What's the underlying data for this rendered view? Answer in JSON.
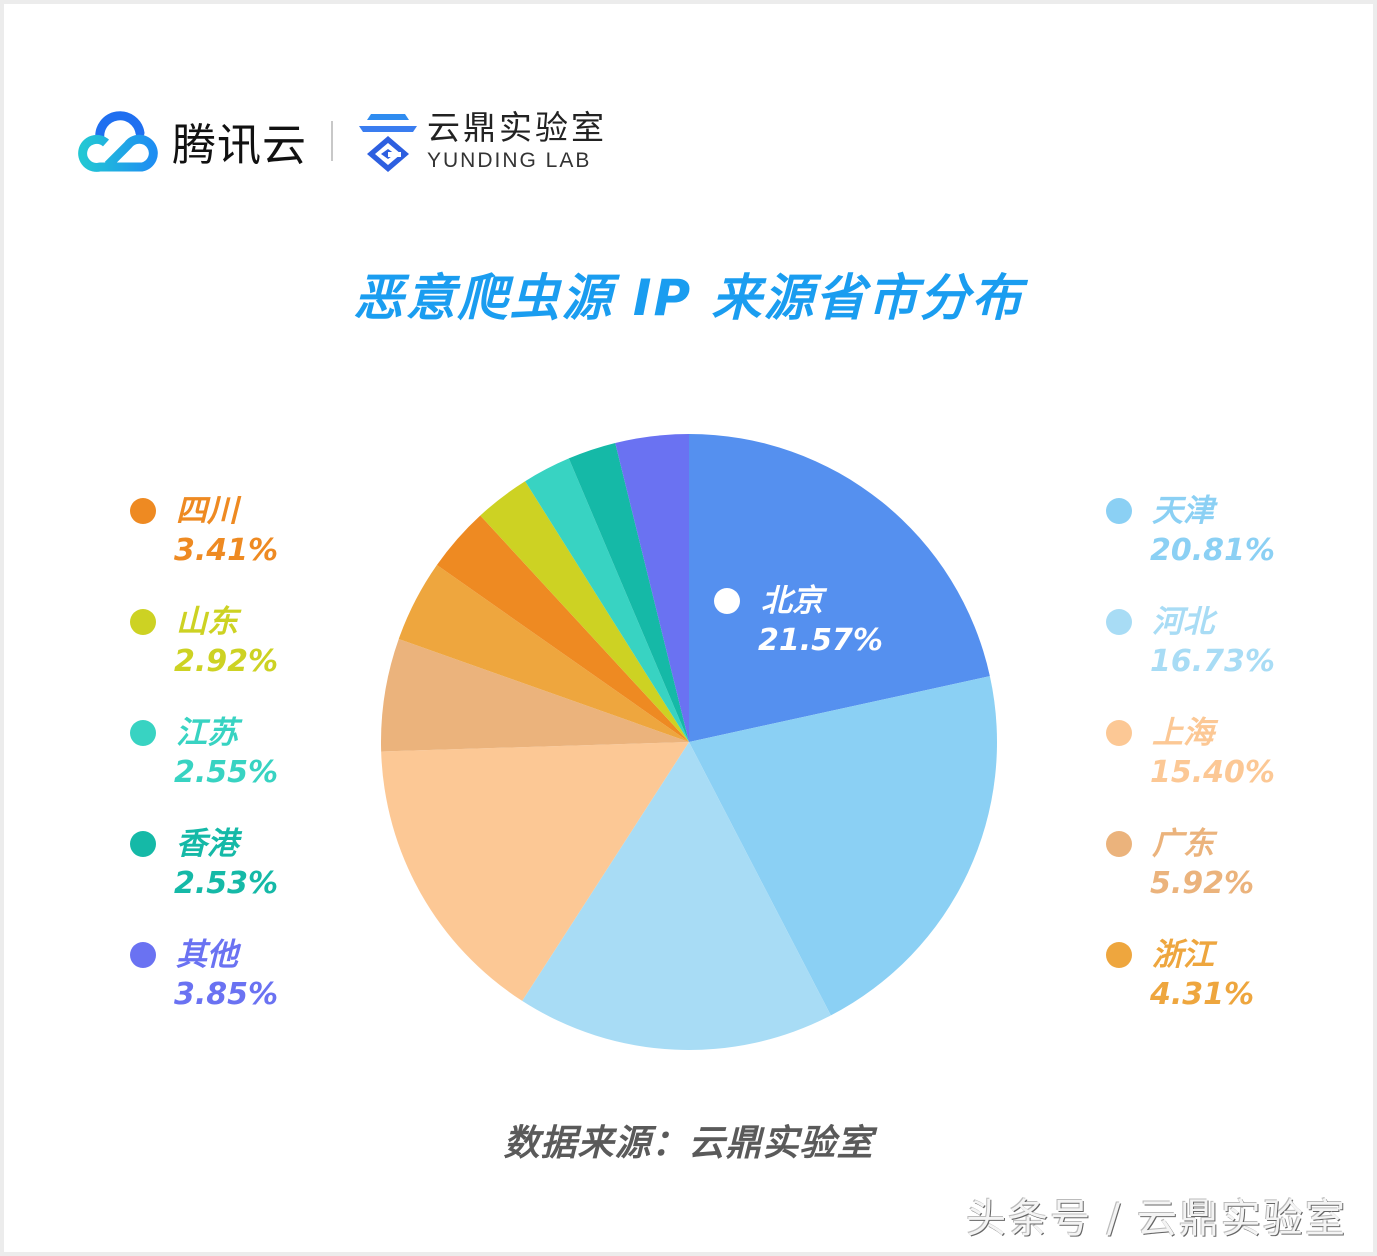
{
  "header": {
    "brand_tencent": "腾讯云",
    "brand_lab_cn": "云鼎实验室",
    "brand_lab_en": "YUNDING LAB"
  },
  "title": "恶意爬虫源 IP 来源省市分布",
  "source": "数据来源：云鼎实验室",
  "watermark": "头条号 / 云鼎实验室",
  "legend_left": [
    {
      "name": "四川",
      "value": "3.41%",
      "color": "#ee8a22"
    },
    {
      "name": "山东",
      "value": "2.92%",
      "color": "#cdd223"
    },
    {
      "name": "江苏",
      "value": "2.55%",
      "color": "#38d3c2"
    },
    {
      "name": "香港",
      "value": "2.53%",
      "color": "#15b9a7"
    },
    {
      "name": "其他",
      "value": "3.85%",
      "color": "#6a72f2"
    }
  ],
  "legend_right": [
    {
      "name": "天津",
      "value": "20.81%",
      "color": "#8bd0f4"
    },
    {
      "name": "河北",
      "value": "16.73%",
      "color": "#a8dcf5"
    },
    {
      "name": "上海",
      "value": "15.40%",
      "color": "#fcc895"
    },
    {
      "name": "广东",
      "value": "5.92%",
      "color": "#ebb37c"
    },
    {
      "name": "浙江",
      "value": "4.31%",
      "color": "#eea63e"
    }
  ],
  "inner_label": {
    "name": "北京",
    "value": "21.57%",
    "color": "#5590ef"
  },
  "chart_data": {
    "type": "pie",
    "title": "恶意爬虫源 IP 来源省市分布",
    "start_angle": "12 o'clock",
    "direction": "clockwise",
    "unit": "%",
    "categories": [
      "北京",
      "天津",
      "河北",
      "上海",
      "广东",
      "浙江",
      "四川",
      "山东",
      "江苏",
      "香港",
      "其他"
    ],
    "values": [
      21.57,
      20.81,
      16.73,
      15.4,
      5.92,
      4.31,
      3.41,
      2.92,
      2.55,
      2.53,
      3.85
    ],
    "colors": [
      "#5590ef",
      "#8bd0f4",
      "#a8dcf5",
      "#fcc895",
      "#ebb37c",
      "#eea63e",
      "#ee8a22",
      "#cdd223",
      "#38d3c2",
      "#15b9a7",
      "#6a72f2"
    ],
    "legend_position": "left and right columns",
    "source": "数据来源：云鼎实验室"
  }
}
